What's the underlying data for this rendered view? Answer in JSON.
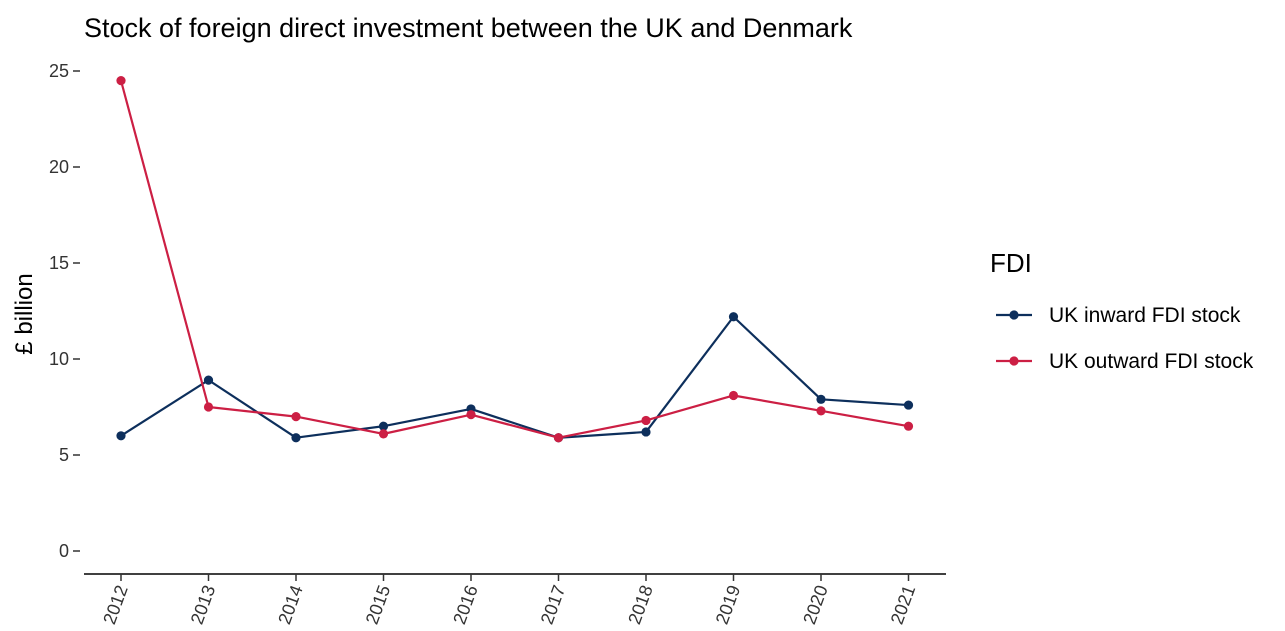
{
  "chart_data": {
    "type": "line",
    "title": "Stock of foreign direct investment between the UK and Denmark",
    "xlabel": "",
    "ylabel": "£ billion",
    "x": [
      "2012",
      "2013",
      "2014",
      "2015",
      "2016",
      "2017",
      "2018",
      "2019",
      "2020",
      "2021"
    ],
    "ylim": [
      0,
      25
    ],
    "yticks": [
      "0",
      "5",
      "10",
      "15",
      "20",
      "25"
    ],
    "grid": false,
    "legend_title": "FDI",
    "legend_position": "right",
    "series": [
      {
        "name": "UK inward FDI stock",
        "color": "#0d2f5c",
        "values": [
          6.0,
          8.9,
          5.9,
          6.5,
          7.4,
          5.9,
          6.2,
          12.2,
          7.9,
          7.6
        ]
      },
      {
        "name": "UK outward FDI stock",
        "color": "#cc1f44",
        "values": [
          24.5,
          7.5,
          7.0,
          6.1,
          7.1,
          5.9,
          6.8,
          8.1,
          7.3,
          6.5
        ]
      }
    ]
  }
}
